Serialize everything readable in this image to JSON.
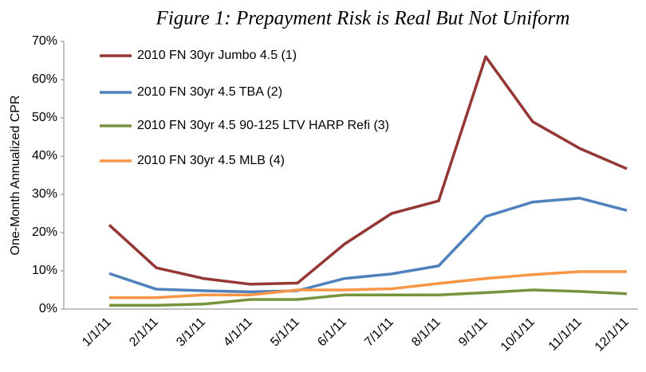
{
  "chart_data": {
    "type": "line",
    "title": "Figure 1: Prepayment Risk is Real But Not Uniform",
    "y_label": "One-Month Annualized CPR",
    "categories": [
      "1/1/11",
      "2/1/11",
      "3/1/11",
      "4/1/11",
      "5/1/11",
      "6/1/11",
      "7/1/11",
      "8/1/11",
      "9/1/11",
      "10/1/11",
      "11/1/11",
      "12/1/11"
    ],
    "series": [
      {
        "name": "2010 FN 30yr Jumbo 4.5 (1)",
        "color": "#953735",
        "values": [
          22,
          10.8,
          8,
          6.5,
          6.8,
          17,
          25,
          28.3,
          66,
          49,
          42,
          36.7
        ]
      },
      {
        "name": "2010 FN 30yr 4.5 TBA (2)",
        "color": "#4f81bd",
        "values": [
          9.3,
          5.2,
          4.8,
          4.5,
          4.8,
          8,
          9.2,
          11.3,
          24.2,
          28,
          29,
          25.8
        ]
      },
      {
        "name": "2010 FN 30yr 4.5 90-125 LTV HARP Refi (3)",
        "color": "#77933c",
        "values": [
          1,
          1,
          1.3,
          2.5,
          2.5,
          3.7,
          3.7,
          3.7,
          4.3,
          5,
          4.6,
          4
        ]
      },
      {
        "name": "2010 FN 30yr 4.5 MLB (4)",
        "color": "#f79646",
        "values": [
          3,
          3,
          3.7,
          3.7,
          5,
          5,
          5.3,
          6.7,
          8,
          9,
          9.8,
          9.8
        ]
      }
    ],
    "ylim": [
      0,
      70
    ],
    "yticks": [
      {
        "value": 0,
        "label": "0%"
      },
      {
        "value": 10,
        "label": "10%"
      },
      {
        "value": 20,
        "label": "20%"
      },
      {
        "value": 30,
        "label": "30%"
      },
      {
        "value": 40,
        "label": "40%"
      },
      {
        "value": 50,
        "label": "50%"
      },
      {
        "value": 60,
        "label": "60%"
      },
      {
        "value": 70,
        "label": "70%"
      }
    ],
    "legend": "top-left"
  }
}
